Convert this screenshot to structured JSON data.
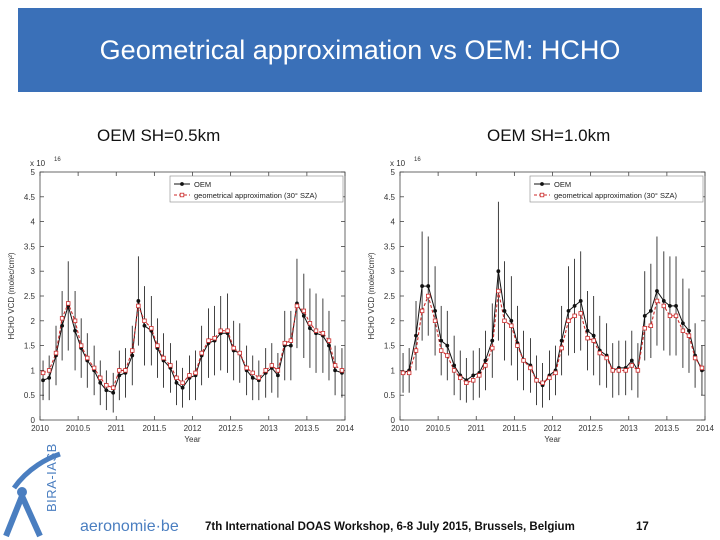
{
  "slide": {
    "title": "Geometrical approximation vs OEM: HCHO",
    "footer": "7th International DOAS Workshop, 6-8 July 2015, Brussels, Belgium",
    "page_number": "17",
    "logo": {
      "vertical_text": "BIRA-IASB",
      "wordmark": "aeronomie·be"
    }
  },
  "colors": {
    "banner": "#3a70b8",
    "oem": "#111111",
    "geo": "#cc2a2a"
  },
  "chart_data": [
    {
      "type": "line",
      "panel_title": "OEM SH=0.5km",
      "xlabel": "Year",
      "ylabel": "HCHO VCD (molec/cm²)",
      "multiplier": "x 10",
      "multiplier_exp": "16",
      "xlim": [
        2010,
        2014
      ],
      "ylim": [
        0,
        5
      ],
      "xticks": [
        "2010",
        "2010.5",
        "2011",
        "2011.5",
        "2012",
        "2012.5",
        "2013",
        "2013.5",
        "2014"
      ],
      "yticks": [
        "0",
        "0.5",
        "1",
        "1.5",
        "2",
        "2.5",
        "3",
        "3.5",
        "4",
        "4.5",
        "5"
      ],
      "x": [
        2010.04,
        2010.12,
        2010.21,
        2010.29,
        2010.37,
        2010.46,
        2010.54,
        2010.62,
        2010.71,
        2010.79,
        2010.87,
        2010.96,
        2011.04,
        2011.12,
        2011.21,
        2011.29,
        2011.37,
        2011.46,
        2011.54,
        2011.62,
        2011.71,
        2011.79,
        2011.87,
        2011.96,
        2012.04,
        2012.12,
        2012.21,
        2012.29,
        2012.37,
        2012.46,
        2012.54,
        2012.62,
        2012.71,
        2012.79,
        2012.87,
        2012.96,
        2013.04,
        2013.12,
        2013.21,
        2013.29,
        2013.37,
        2013.46,
        2013.54,
        2013.62,
        2013.71,
        2013.79,
        2013.87,
        2013.96
      ],
      "series": [
        {
          "name": "OEM",
          "values": [
            0.8,
            0.85,
            1.3,
            1.9,
            2.3,
            1.8,
            1.45,
            1.2,
            1.0,
            0.75,
            0.6,
            0.55,
            0.9,
            0.95,
            1.3,
            2.4,
            1.9,
            1.8,
            1.45,
            1.2,
            1.05,
            0.75,
            0.65,
            0.85,
            0.9,
            1.3,
            1.55,
            1.6,
            1.75,
            1.75,
            1.4,
            1.35,
            1.0,
            0.85,
            0.8,
            0.95,
            1.05,
            0.9,
            1.5,
            1.5,
            2.35,
            2.1,
            1.85,
            1.75,
            1.7,
            1.5,
            1.0,
            0.95
          ]
        },
        {
          "name": "geometrical approximation (30° SZA)",
          "values": [
            0.95,
            1.0,
            1.35,
            2.05,
            2.35,
            2.0,
            1.5,
            1.25,
            1.05,
            0.85,
            0.7,
            0.65,
            1.0,
            1.0,
            1.4,
            2.3,
            2.0,
            1.85,
            1.5,
            1.25,
            1.1,
            0.85,
            0.75,
            0.9,
            0.95,
            1.35,
            1.6,
            1.65,
            1.8,
            1.8,
            1.45,
            1.35,
            1.05,
            0.95,
            0.85,
            1.0,
            1.1,
            1.0,
            1.55,
            1.6,
            2.3,
            2.2,
            1.95,
            1.8,
            1.75,
            1.6,
            1.1,
            1.0
          ]
        }
      ],
      "error_bars": [
        0.4,
        0.45,
        0.6,
        0.7,
        0.9,
        0.8,
        0.6,
        0.55,
        0.5,
        0.45,
        0.4,
        0.4,
        0.5,
        0.5,
        0.6,
        0.9,
        0.8,
        0.7,
        0.6,
        0.55,
        0.5,
        0.45,
        0.4,
        0.45,
        0.5,
        0.6,
        0.7,
        0.7,
        0.75,
        0.8,
        0.6,
        0.6,
        0.5,
        0.45,
        0.4,
        0.5,
        0.5,
        0.45,
        0.7,
        0.7,
        0.9,
        0.85,
        0.8,
        0.8,
        0.75,
        0.7,
        0.5,
        0.5
      ],
      "legend": "top-right",
      "grid": false
    },
    {
      "type": "line",
      "panel_title": "OEM SH=1.0km",
      "xlabel": "Year",
      "ylabel": "HCHO VCD (molec/cm²)",
      "multiplier": "x 10",
      "multiplier_exp": "16",
      "xlim": [
        2010,
        2014
      ],
      "ylim": [
        0,
        5
      ],
      "xticks": [
        "2010",
        "2010.5",
        "2011",
        "2011.5",
        "2012",
        "2012.5",
        "2013",
        "2013.5",
        "2014"
      ],
      "yticks": [
        "0",
        "0.5",
        "1",
        "1.5",
        "2",
        "2.5",
        "3",
        "3.5",
        "4",
        "4.5",
        "5"
      ],
      "x": [
        2010.04,
        2010.12,
        2010.21,
        2010.29,
        2010.37,
        2010.46,
        2010.54,
        2010.62,
        2010.71,
        2010.79,
        2010.87,
        2010.96,
        2011.04,
        2011.12,
        2011.21,
        2011.29,
        2011.37,
        2011.46,
        2011.54,
        2011.62,
        2011.71,
        2011.79,
        2011.87,
        2011.96,
        2012.04,
        2012.12,
        2012.21,
        2012.29,
        2012.37,
        2012.46,
        2012.54,
        2012.62,
        2012.71,
        2012.79,
        2012.87,
        2012.96,
        2013.04,
        2013.12,
        2013.21,
        2013.29,
        2013.37,
        2013.46,
        2013.54,
        2013.62,
        2013.71,
        2013.79,
        2013.87,
        2013.96
      ],
      "series": [
        {
          "name": "OEM",
          "values": [
            0.95,
            1.0,
            1.7,
            2.7,
            2.7,
            2.2,
            1.6,
            1.5,
            1.1,
            0.9,
            0.8,
            0.9,
            0.95,
            1.2,
            1.6,
            3.0,
            2.2,
            2.0,
            1.55,
            1.2,
            1.1,
            0.8,
            0.7,
            0.9,
            1.0,
            1.6,
            2.2,
            2.3,
            2.4,
            1.8,
            1.7,
            1.4,
            1.3,
            1.0,
            1.05,
            1.05,
            1.2,
            1.0,
            2.1,
            2.2,
            2.6,
            2.4,
            2.3,
            2.3,
            1.95,
            1.8,
            1.3,
            1.0
          ]
        },
        {
          "name": "geometrical approximation (30° SZA)",
          "values": [
            0.95,
            0.95,
            1.4,
            2.2,
            2.5,
            2.0,
            1.4,
            1.3,
            1.0,
            0.85,
            0.75,
            0.8,
            0.9,
            1.1,
            1.45,
            2.6,
            2.0,
            1.9,
            1.5,
            1.2,
            1.05,
            0.8,
            0.75,
            0.85,
            0.95,
            1.45,
            2.0,
            2.1,
            2.15,
            1.65,
            1.6,
            1.35,
            1.25,
            1.0,
            1.0,
            1.0,
            1.1,
            1.0,
            1.85,
            1.9,
            2.4,
            2.3,
            2.1,
            2.1,
            1.8,
            1.7,
            1.25,
            1.05
          ]
        }
      ],
      "error_bars": [
        0.4,
        0.45,
        0.7,
        1.1,
        1.0,
        0.9,
        0.7,
        0.7,
        0.6,
        0.5,
        0.45,
        0.5,
        0.5,
        0.6,
        0.75,
        1.4,
        1.0,
        0.9,
        0.75,
        0.6,
        0.55,
        0.5,
        0.45,
        0.5,
        0.5,
        0.7,
        0.9,
        0.95,
        1.0,
        0.8,
        0.8,
        0.7,
        0.65,
        0.55,
        0.55,
        0.55,
        0.6,
        0.55,
        0.9,
        0.95,
        1.1,
        1.0,
        1.0,
        1.0,
        0.9,
        0.85,
        0.65,
        0.5
      ],
      "legend": "top-right",
      "grid": false
    }
  ]
}
